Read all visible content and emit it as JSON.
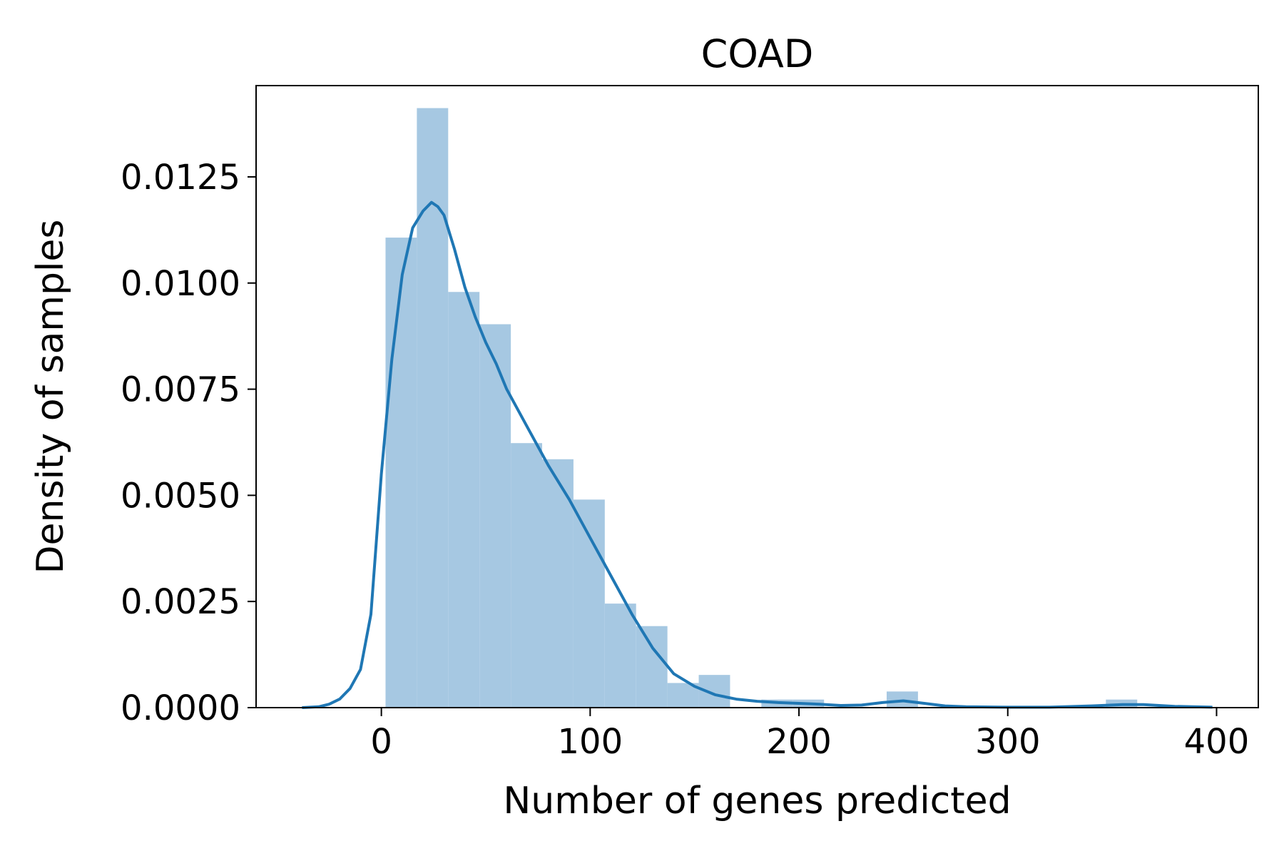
{
  "chart_data": {
    "type": "bar",
    "title": "COAD",
    "xlabel": "Number of genes predicted",
    "ylabel": "Density of samples",
    "xlim": [
      -60,
      420
    ],
    "ylim": [
      0,
      0.01465
    ],
    "xticks": [
      0,
      100,
      200,
      300,
      400
    ],
    "yticks": [
      0.0,
      0.0025,
      0.005,
      0.0075,
      0.01,
      0.0125
    ],
    "ytick_labels": [
      "0.0000",
      "0.0025",
      "0.0050",
      "0.0075",
      "0.0100",
      "0.0125"
    ],
    "grid": false,
    "histogram": {
      "bins": [
        {
          "x0": 2,
          "x1": 17,
          "density": 0.01107
        },
        {
          "x0": 17,
          "x1": 32,
          "density": 0.01412
        },
        {
          "x0": 32,
          "x1": 47,
          "density": 0.00979
        },
        {
          "x0": 47,
          "x1": 62,
          "density": 0.00903
        },
        {
          "x0": 62,
          "x1": 77,
          "density": 0.00623
        },
        {
          "x0": 77,
          "x1": 92,
          "density": 0.00585
        },
        {
          "x0": 92,
          "x1": 107,
          "density": 0.0049
        },
        {
          "x0": 107,
          "x1": 122,
          "density": 0.00245
        },
        {
          "x0": 122,
          "x1": 137,
          "density": 0.00192
        },
        {
          "x0": 137,
          "x1": 152,
          "density": 0.00058
        },
        {
          "x0": 152,
          "x1": 167,
          "density": 0.00077
        },
        {
          "x0": 167,
          "x1": 182,
          "density": 0.0
        },
        {
          "x0": 182,
          "x1": 197,
          "density": 0.00019
        },
        {
          "x0": 197,
          "x1": 212,
          "density": 0.00019
        },
        {
          "x0": 212,
          "x1": 227,
          "density": 0.0
        },
        {
          "x0": 227,
          "x1": 242,
          "density": 0.0
        },
        {
          "x0": 242,
          "x1": 257,
          "density": 0.00038
        },
        {
          "x0": 257,
          "x1": 272,
          "density": 0.0
        },
        {
          "x0": 272,
          "x1": 287,
          "density": 0.0
        },
        {
          "x0": 287,
          "x1": 302,
          "density": 0.0
        },
        {
          "x0": 302,
          "x1": 317,
          "density": 0.0
        },
        {
          "x0": 317,
          "x1": 332,
          "density": 0.0
        },
        {
          "x0": 332,
          "x1": 347,
          "density": 0.0
        },
        {
          "x0": 347,
          "x1": 362,
          "density": 0.00019
        }
      ]
    },
    "kde": {
      "x": [
        -38,
        -30,
        -25,
        -20,
        -15,
        -10,
        -5,
        0,
        5,
        10,
        15,
        20,
        24,
        27,
        30,
        35,
        40,
        45,
        50,
        55,
        60,
        70,
        80,
        90,
        100,
        110,
        120,
        130,
        140,
        150,
        160,
        170,
        180,
        190,
        200,
        210,
        220,
        230,
        240,
        250,
        260,
        270,
        280,
        300,
        320,
        340,
        355,
        365,
        380,
        398
      ],
      "y": [
        0.0,
        2e-05,
        8e-05,
        0.0002,
        0.00045,
        0.0009,
        0.0022,
        0.0055,
        0.0082,
        0.0102,
        0.0113,
        0.0117,
        0.0119,
        0.0118,
        0.0116,
        0.0108,
        0.0099,
        0.0092,
        0.0086,
        0.0081,
        0.0075,
        0.0066,
        0.0057,
        0.0049,
        0.004,
        0.0031,
        0.0022,
        0.0014,
        0.0008,
        0.0005,
        0.0003,
        0.0002,
        0.00015,
        0.00012,
        0.0001,
        8e-05,
        5e-05,
        6e-05,
        0.00012,
        0.00016,
        0.0001,
        4e-05,
        2e-05,
        1e-05,
        1e-05,
        4e-05,
        7e-05,
        7e-05,
        3e-05,
        1e-05
      ]
    },
    "colors": {
      "bar_fill": "#a6c8e2",
      "kde_line": "#1f77b4",
      "axis": "#000000"
    }
  }
}
